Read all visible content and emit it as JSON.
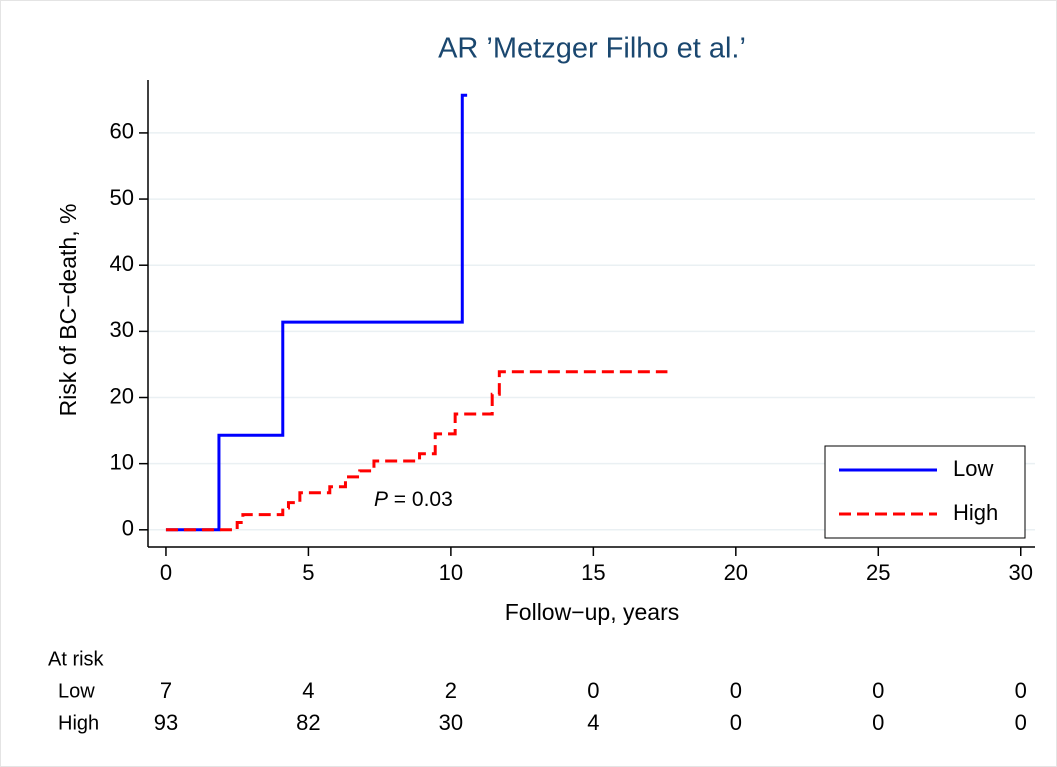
{
  "chart_data": {
    "type": "step",
    "title": "AR ’Metzger Filho et al.’",
    "xlabel": "Follow−up, years",
    "ylabel": "Risk of BC−death, %",
    "xlim": [
      -0.63,
      30.5
    ],
    "ylim": [
      -2.6,
      68
    ],
    "xticks": [
      0,
      5,
      10,
      15,
      20,
      25,
      30
    ],
    "yticks": [
      0,
      10,
      20,
      30,
      40,
      50,
      60
    ],
    "grid": true,
    "legend": "lower right",
    "series": [
      {
        "name": "Low",
        "color": "#0000ff",
        "dash": false,
        "x": [
          0,
          1.86,
          4.1,
          10.4,
          10.57
        ],
        "values": [
          0,
          14.3,
          31.4,
          65.7,
          65.7
        ]
      },
      {
        "name": "High",
        "color": "#ff0000",
        "dash": true,
        "x": [
          0,
          2.5,
          2.7,
          4.1,
          4.3,
          4.7,
          5.75,
          6.3,
          6.8,
          7.3,
          8.9,
          9.45,
          10.15,
          11.45,
          11.7,
          17.6
        ],
        "values": [
          0,
          1.1,
          2.3,
          3.3,
          4.1,
          5.6,
          6.5,
          8.0,
          8.9,
          10.4,
          11.5,
          14.5,
          17.5,
          20.5,
          23.9,
          23.9
        ]
      }
    ],
    "annotation": {
      "italic": "P",
      "text": " = 0.03",
      "x": 7.3,
      "y": 4.5
    },
    "at_risk": {
      "title": "At risk",
      "rows": [
        {
          "name": "Low",
          "values": [
            7,
            4,
            2,
            0,
            0,
            0,
            0
          ]
        },
        {
          "name": "High",
          "values": [
            93,
            82,
            30,
            4,
            0,
            0,
            0
          ]
        }
      ]
    }
  }
}
